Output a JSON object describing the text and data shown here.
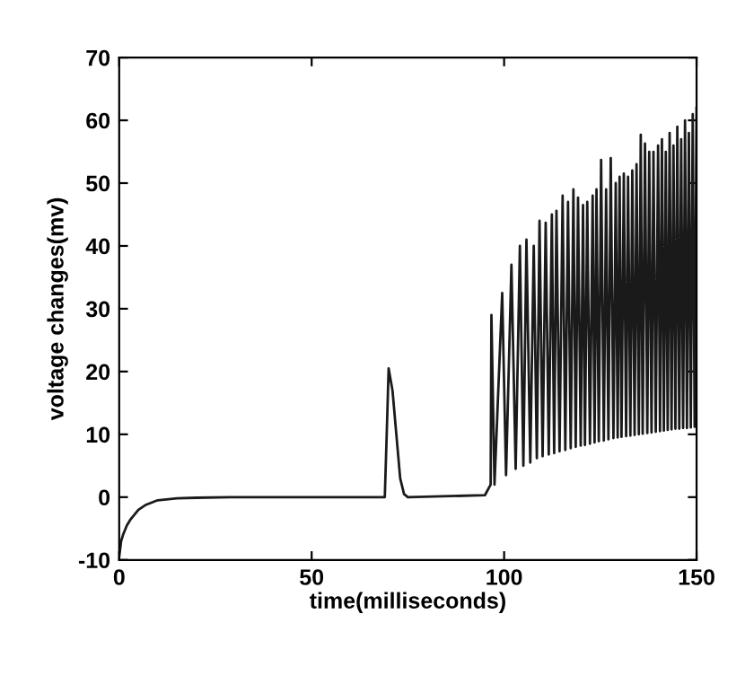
{
  "chart_data": {
    "type": "line",
    "xlabel": "time(milliseconds)",
    "ylabel": "voltage changes(mv)",
    "xlim": [
      0,
      150
    ],
    "ylim": [
      -10,
      70
    ],
    "xticks": [
      0,
      50,
      100,
      150
    ],
    "yticks": [
      -10,
      0,
      10,
      20,
      30,
      40,
      50,
      60,
      70
    ],
    "grid": false,
    "legend": false,
    "series": [
      {
        "color": "#1a1a1a",
        "x": [
          0,
          0.5,
          1,
          2,
          3,
          5,
          7,
          10,
          15,
          20,
          30,
          69,
          69.5,
          70,
          71,
          72,
          73,
          74,
          75,
          95,
          96.5,
          96.7,
          97.5,
          99.5,
          100.5,
          101.9,
          103,
          104.1,
          105,
          105.8,
          106.8,
          107.7,
          108.5,
          109.2,
          110,
          110.8,
          111.6,
          112.4,
          113,
          113.6,
          114.4,
          115.2,
          115.9,
          116.6,
          117.3,
          118,
          118.6,
          119.2,
          119.9,
          120.5,
          121,
          121.6,
          122.3,
          123,
          123.5,
          124,
          124.6,
          125.2,
          125.9,
          126.5,
          127.1,
          127.7,
          128.4,
          129,
          129.5,
          130,
          130.5,
          131.1,
          131.7,
          132.2,
          132.8,
          133.3,
          133.9,
          134.4,
          135,
          135.5,
          136,
          136.6,
          137.2,
          137.7,
          138.3,
          138.8,
          139.4,
          140,
          140.5,
          141,
          141.5,
          142,
          142.5,
          143,
          143.5,
          144,
          144.5,
          145,
          145.5,
          146,
          146.5,
          147,
          147.5,
          148,
          148.5,
          149,
          149.5,
          150
        ],
        "values": [
          -9.5,
          -7,
          -6,
          -4.5,
          -3.5,
          -2,
          -1.2,
          -0.5,
          -0.2,
          -0.1,
          0,
          0,
          10,
          20.5,
          17,
          10,
          3,
          0.5,
          0,
          0.3,
          2,
          29,
          2,
          32.5,
          3.5,
          37,
          4.5,
          40,
          5,
          41,
          5.5,
          40,
          6.2,
          44,
          6.5,
          43.7,
          6.8,
          45,
          7,
          45.6,
          7.3,
          48,
          7.5,
          47,
          7.8,
          49,
          8,
          47.7,
          8.2,
          46.5,
          8.3,
          47,
          8.5,
          48,
          8.7,
          49,
          8.9,
          53.7,
          9,
          49,
          9.2,
          54,
          9.4,
          50,
          9.5,
          51,
          9.6,
          51.5,
          9.7,
          51,
          9.8,
          52,
          9.9,
          53,
          10,
          57.7,
          10.1,
          56.3,
          10.2,
          55,
          10.3,
          55,
          10.4,
          56,
          10.5,
          57,
          10.6,
          55,
          10.7,
          58,
          10.8,
          56,
          10.9,
          59,
          10.9,
          57,
          11,
          60,
          11,
          58,
          11.1,
          61,
          11.2,
          62
        ]
      }
    ]
  }
}
